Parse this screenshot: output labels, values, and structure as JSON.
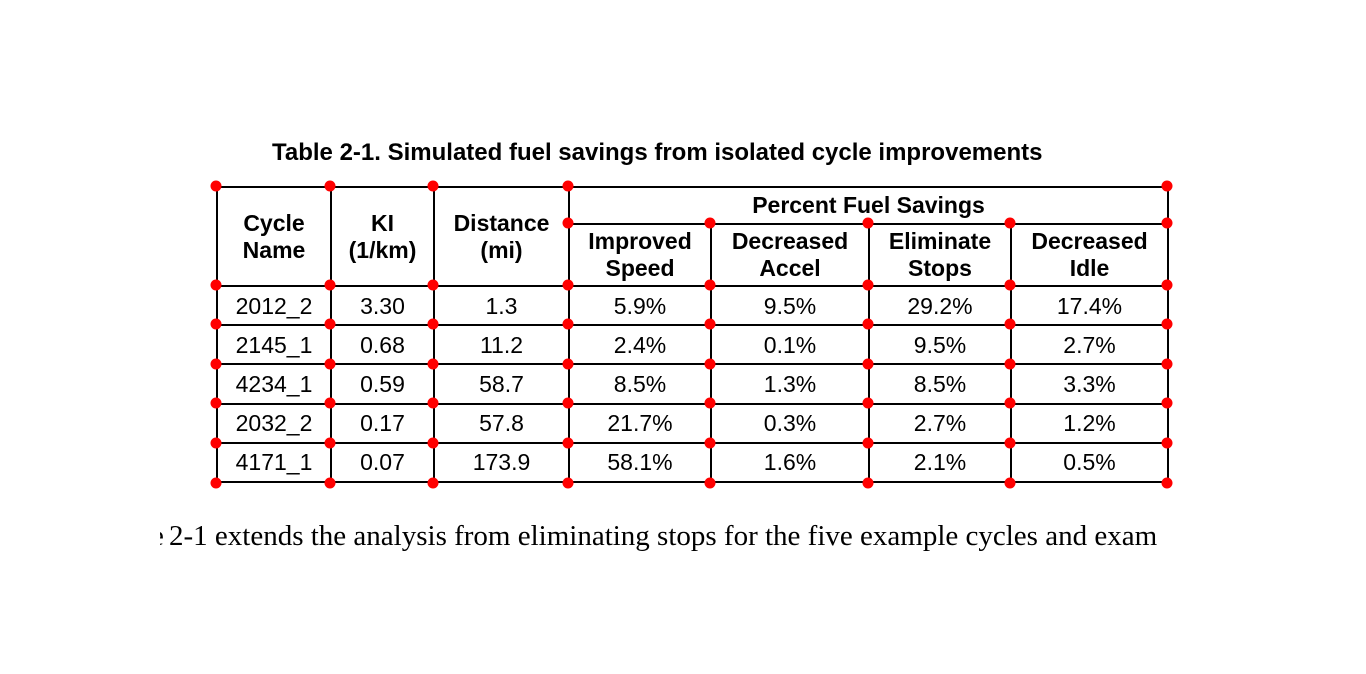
{
  "title": "Table 2-1. Simulated fuel savings from isolated cycle improvements",
  "table": {
    "columns": {
      "cycle_name": "Cycle\nName",
      "ki": "KI\n(1/km)",
      "distance": "Distance\n(mi)",
      "group": "Percent Fuel Savings",
      "sub_columns": [
        "Improved\nSpeed",
        "Decreased\nAccel",
        "Eliminate\nStops",
        "Decreased\nIdle"
      ]
    },
    "rows": [
      {
        "cycle_name": "2012_2",
        "ki": "3.30",
        "distance": "1.3",
        "improved_speed": "5.9%",
        "decreased_accel": "9.5%",
        "eliminate_stops": "29.2%",
        "decreased_idle": "17.4%"
      },
      {
        "cycle_name": "2145_1",
        "ki": "0.68",
        "distance": "11.2",
        "improved_speed": "2.4%",
        "decreased_accel": "0.1%",
        "eliminate_stops": "9.5%",
        "decreased_idle": "2.7%"
      },
      {
        "cycle_name": "4234_1",
        "ki": "0.59",
        "distance": "58.7",
        "improved_speed": "8.5%",
        "decreased_accel": "1.3%",
        "eliminate_stops": "8.5%",
        "decreased_idle": "3.3%"
      },
      {
        "cycle_name": "2032_2",
        "ki": "0.17",
        "distance": "57.8",
        "improved_speed": "21.7%",
        "decreased_accel": "0.3%",
        "eliminate_stops": "2.7%",
        "decreased_idle": "1.2%"
      },
      {
        "cycle_name": "4171_1",
        "ki": "0.07",
        "distance": "173.9",
        "improved_speed": "58.1%",
        "decreased_accel": "1.6%",
        "eliminate_stops": "2.1%",
        "decreased_idle": "0.5%"
      }
    ]
  },
  "paragraph": {
    "clipped_prefix": "e",
    "text": "2-1 extends the analysis from eliminating stops for the five example cycles and exam"
  },
  "colors": {
    "marker_red": "#ff0000",
    "border_black": "#000000"
  }
}
